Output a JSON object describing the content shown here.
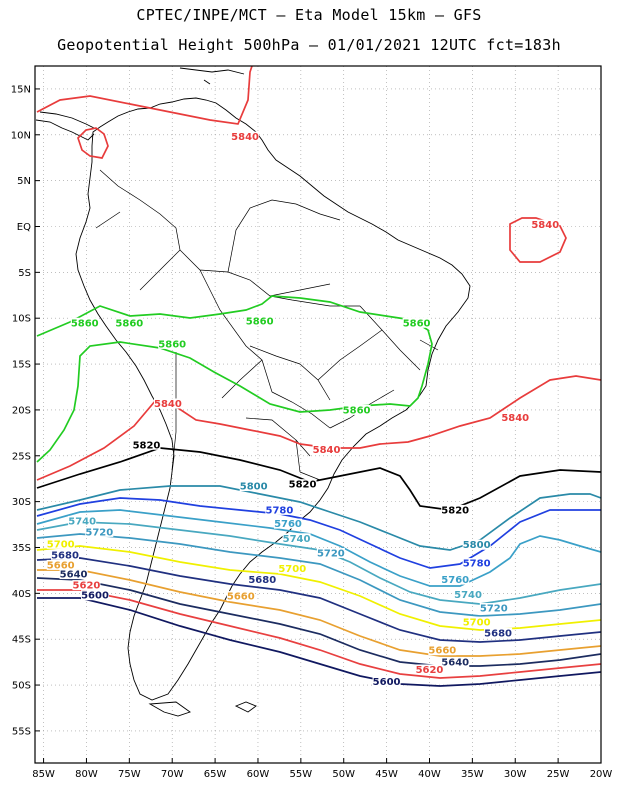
{
  "header": {
    "title_line1": "CPTEC/INPE/MCT –  Eta Model 15km – GFS",
    "title_line2": "Geopotential Height 500hPa – 01/01/2021 12UTC fct=183h"
  },
  "map": {
    "lon_ticks": [
      "85W",
      "80W",
      "75W",
      "70W",
      "65W",
      "60W",
      "55W",
      "50W",
      "45W",
      "40W",
      "35W",
      "30W",
      "25W",
      "20W"
    ],
    "lat_ticks": [
      "15N",
      "10N",
      "5N",
      "EQ",
      "5S",
      "10S",
      "15S",
      "20S",
      "25S",
      "30S",
      "35S",
      "40S",
      "45S",
      "50S",
      "55S"
    ],
    "lon_values": [
      -85,
      -80,
      -75,
      -70,
      -65,
      -60,
      -55,
      -50,
      -45,
      -40,
      -35,
      -30,
      -25,
      -20
    ],
    "lat_values": [
      15,
      10,
      5,
      0,
      -5,
      -10,
      -15,
      -20,
      -25,
      -30,
      -35,
      -40,
      -45,
      -50,
      -55
    ],
    "lon_range": [
      -86,
      -20
    ],
    "lat_range": [
      17.5,
      -58.5
    ],
    "grid": true,
    "contour_colors": {
      "5840": "#e83c3c",
      "5860": "#22cc22",
      "5820": "#000000",
      "5800": "#2a8aa8",
      "5780": "#2040e0",
      "5760": "#3aa0c8",
      "5740": "#48a8c0",
      "5720": "#3c98c0",
      "5700": "#f0f000",
      "5680": "#203080",
      "5660": "#e8a030",
      "5640": "#1c2c60",
      "5620": "#e84040",
      "5600": "#101860"
    },
    "contour_labels": [
      {
        "text": "5840",
        "level": "5840",
        "lon": -61.5,
        "lat": 9.8
      },
      {
        "text": "5840",
        "level": "5840",
        "lon": -26.5,
        "lat": 0.2
      },
      {
        "text": "5840",
        "level": "5840",
        "lon": -70.5,
        "lat": -19.3
      },
      {
        "text": "5840",
        "level": "5840",
        "lon": -30.0,
        "lat": -20.8
      },
      {
        "text": "5840",
        "level": "5840",
        "lon": -52.0,
        "lat": -24.3
      },
      {
        "text": "5860",
        "level": "5860",
        "lon": -80.2,
        "lat": -10.5
      },
      {
        "text": "5860",
        "level": "5860",
        "lon": -75.0,
        "lat": -10.5
      },
      {
        "text": "5860",
        "level": "5860",
        "lon": -59.8,
        "lat": -10.3
      },
      {
        "text": "5860",
        "level": "5860",
        "lon": -41.5,
        "lat": -10.5
      },
      {
        "text": "5860",
        "level": "5860",
        "lon": -70.0,
        "lat": -12.8
      },
      {
        "text": "5860",
        "level": "5860",
        "lon": -48.5,
        "lat": -20.0
      },
      {
        "text": "5820",
        "level": "5820",
        "lon": -73.0,
        "lat": -23.8
      },
      {
        "text": "5820",
        "level": "5820",
        "lon": -54.8,
        "lat": -28.1
      },
      {
        "text": "5820",
        "level": "5820",
        "lon": -37.0,
        "lat": -30.9
      },
      {
        "text": "5800",
        "level": "5800",
        "lon": -60.5,
        "lat": -28.3
      },
      {
        "text": "5800",
        "level": "5800",
        "lon": -34.5,
        "lat": -34.7
      },
      {
        "text": "5780",
        "level": "5780",
        "lon": -57.5,
        "lat": -30.9
      },
      {
        "text": "5780",
        "level": "5780",
        "lon": -34.5,
        "lat": -36.7
      },
      {
        "text": "5760",
        "level": "5760",
        "lon": -56.5,
        "lat": -32.4
      },
      {
        "text": "5760",
        "level": "5760",
        "lon": -37.0,
        "lat": -38.5
      },
      {
        "text": "5740",
        "level": "5740",
        "lon": -80.5,
        "lat": -32.1
      },
      {
        "text": "5740",
        "level": "5740",
        "lon": -55.5,
        "lat": -34.0
      },
      {
        "text": "5740",
        "level": "5740",
        "lon": -35.5,
        "lat": -40.1
      },
      {
        "text": "5720",
        "level": "5720",
        "lon": -78.5,
        "lat": -33.3
      },
      {
        "text": "5720",
        "level": "5720",
        "lon": -51.5,
        "lat": -35.6
      },
      {
        "text": "5720",
        "level": "5720",
        "lon": -32.5,
        "lat": -41.6
      },
      {
        "text": "5700",
        "level": "5700",
        "lon": -83.0,
        "lat": -34.6
      },
      {
        "text": "5700",
        "level": "5700",
        "lon": -56.0,
        "lat": -37.3
      },
      {
        "text": "5700",
        "level": "5700",
        "lon": -34.5,
        "lat": -43.1
      },
      {
        "text": "5680",
        "level": "5680",
        "lon": -82.5,
        "lat": -35.8
      },
      {
        "text": "5680",
        "level": "5680",
        "lon": -59.5,
        "lat": -38.5
      },
      {
        "text": "5680",
        "level": "5680",
        "lon": -32.0,
        "lat": -44.3
      },
      {
        "text": "5660",
        "level": "5660",
        "lon": -83.0,
        "lat": -36.9
      },
      {
        "text": "5660",
        "level": "5660",
        "lon": -62.0,
        "lat": -40.3
      },
      {
        "text": "5660",
        "level": "5660",
        "lon": -38.5,
        "lat": -46.2
      },
      {
        "text": "5640",
        "level": "5640",
        "lon": -81.5,
        "lat": -37.9
      },
      {
        "text": "5640",
        "level": "5640",
        "lon": -37.0,
        "lat": -47.5
      },
      {
        "text": "5620",
        "level": "5620",
        "lon": -80.0,
        "lat": -39.1
      },
      {
        "text": "5620",
        "level": "5620",
        "lon": -40.0,
        "lat": -48.3
      },
      {
        "text": "5600",
        "level": "5600",
        "lon": -79.0,
        "lat": -40.2
      },
      {
        "text": "5600",
        "level": "5600",
        "lon": -45.0,
        "lat": -49.6
      }
    ]
  }
}
